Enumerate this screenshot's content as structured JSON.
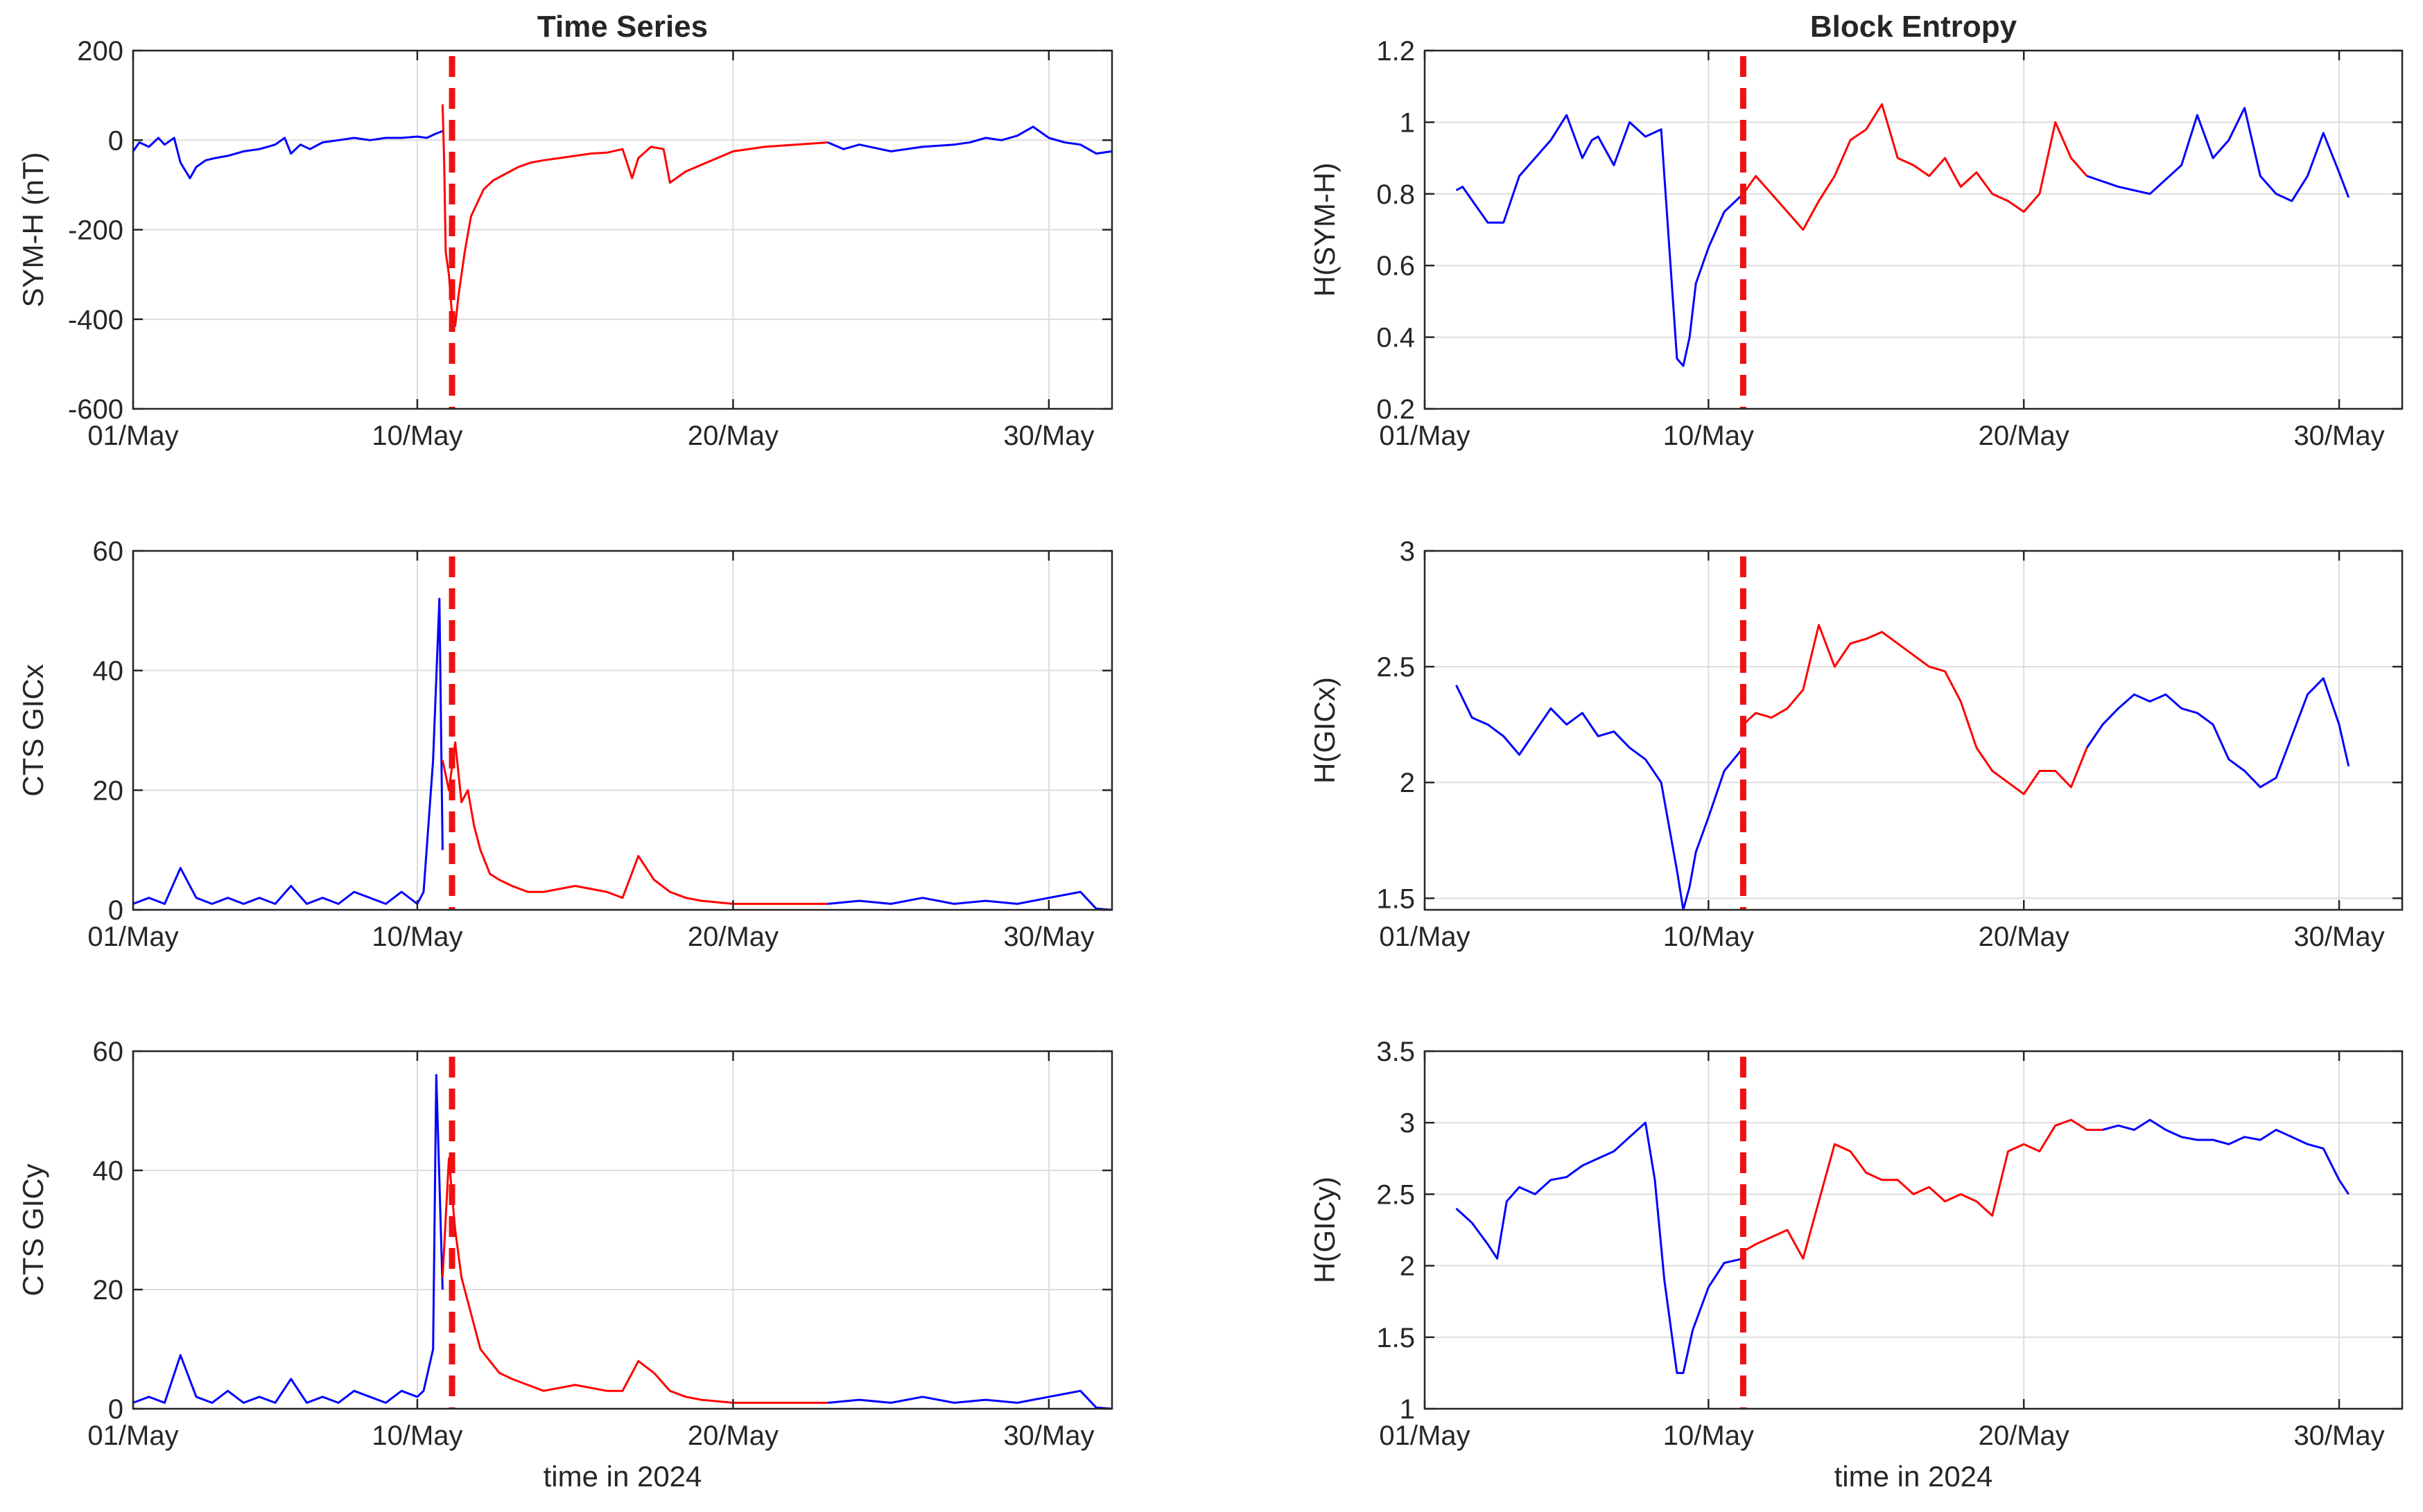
{
  "figure": {
    "colors": {
      "quiet": "#0000ff",
      "storm": "#ff0000",
      "marker": "#ee1111",
      "grid": "#dddddd",
      "axis": "#262626"
    },
    "x_axis": {
      "ticks": [
        "01/May",
        "10/May",
        "20/May",
        "30/May"
      ],
      "xlabel": "time in 2024"
    }
  },
  "chart_data": [
    {
      "id": "a1",
      "type": "line",
      "title": "Time Series",
      "ylabel": "SYM-H (nT)",
      "xlabel": "",
      "xlim": [
        1,
        32
      ],
      "ylim": [
        -600,
        200
      ],
      "yticks": [
        "200",
        "0",
        "-200",
        "-400",
        "-600"
      ],
      "event_marker_day": 11.1,
      "series": [
        {
          "color": "quiet",
          "x": [
            1,
            1.2,
            1.5,
            1.8,
            2,
            2.3,
            2.5,
            2.8,
            3,
            3.3,
            3.6,
            4,
            4.5,
            5,
            5.5,
            5.8,
            6,
            6.3,
            6.6,
            7,
            7.5,
            8,
            8.5,
            9,
            9.5,
            10,
            10.3,
            10.6,
            10.8
          ],
          "y": [
            -25,
            -5,
            -15,
            5,
            -10,
            5,
            -50,
            -85,
            -60,
            -45,
            -40,
            -35,
            -25,
            -20,
            -10,
            5,
            -30,
            -10,
            -20,
            -5,
            0,
            5,
            0,
            5,
            5,
            8,
            5,
            15,
            20
          ]
        },
        {
          "color": "storm",
          "x": [
            10.8,
            10.85,
            10.9,
            11,
            11.1,
            11.2,
            11.3,
            11.4,
            11.5,
            11.7,
            11.9,
            12.1,
            12.4,
            12.8,
            13.2,
            13.6,
            14,
            14.5,
            15,
            15.5,
            16,
            16.5,
            16.8,
            17,
            17.4,
            17.8,
            18,
            18.5,
            19,
            19.5,
            20,
            21,
            22,
            23
          ],
          "y": [
            80,
            -50,
            -250,
            -300,
            -390,
            -415,
            -350,
            -300,
            -250,
            -170,
            -140,
            -110,
            -90,
            -75,
            -60,
            -50,
            -45,
            -40,
            -35,
            -30,
            -28,
            -20,
            -85,
            -40,
            -15,
            -20,
            -95,
            -70,
            -55,
            -40,
            -25,
            -15,
            -10,
            -5
          ]
        },
        {
          "color": "quiet",
          "x": [
            23,
            23.5,
            24,
            25,
            26,
            27,
            27.5,
            28,
            28.5,
            29,
            29.5,
            30,
            30.5,
            31,
            31.5,
            32
          ],
          "y": [
            -5,
            -20,
            -10,
            -25,
            -15,
            -10,
            -5,
            5,
            0,
            10,
            30,
            5,
            -5,
            -10,
            -30,
            -25
          ]
        }
      ]
    },
    {
      "id": "a2",
      "type": "line",
      "title": "",
      "ylabel": "CTS GICx",
      "xlabel": "",
      "xlim": [
        1,
        32
      ],
      "ylim": [
        0,
        60
      ],
      "yticks": [
        "60",
        "40",
        "20",
        "0"
      ],
      "event_marker_day": 11.1,
      "series": [
        {
          "color": "quiet",
          "x": [
            1,
            1.5,
            2,
            2.5,
            3,
            3.5,
            4,
            4.5,
            5,
            5.5,
            6,
            6.5,
            7,
            7.5,
            8,
            8.5,
            9,
            9.5,
            10,
            10.2,
            10.5,
            10.7,
            10.8
          ],
          "y": [
            1,
            2,
            1,
            7,
            2,
            1,
            2,
            1,
            2,
            1,
            4,
            1,
            2,
            1,
            3,
            2,
            1,
            3,
            1,
            3,
            25,
            52,
            10
          ]
        },
        {
          "color": "storm",
          "x": [
            10.8,
            11,
            11.2,
            11.4,
            11.6,
            11.8,
            12,
            12.3,
            12.6,
            13,
            13.5,
            14,
            15,
            16,
            16.5,
            17,
            17.5,
            18,
            18.5,
            19,
            20,
            21,
            22,
            23
          ],
          "y": [
            25,
            20,
            28,
            18,
            20,
            14,
            10,
            6,
            5,
            4,
            3,
            3,
            4,
            3,
            2,
            9,
            5,
            3,
            2,
            1.5,
            1,
            1,
            1,
            1
          ]
        },
        {
          "color": "quiet",
          "x": [
            23,
            24,
            25,
            26,
            27,
            28,
            29,
            30,
            31,
            31.5,
            32
          ],
          "y": [
            1,
            1.5,
            1,
            2,
            1,
            1.5,
            1,
            2,
            3,
            0.2,
            0
          ]
        }
      ]
    },
    {
      "id": "a3",
      "type": "line",
      "title": "",
      "ylabel": "CTS GICy",
      "xlabel": "time in 2024",
      "xlim": [
        1,
        32
      ],
      "ylim": [
        0,
        60
      ],
      "yticks": [
        "60",
        "40",
        "20",
        "0"
      ],
      "event_marker_day": 11.1,
      "series": [
        {
          "color": "quiet",
          "x": [
            1,
            1.5,
            2,
            2.5,
            3,
            3.5,
            4,
            4.5,
            5,
            5.5,
            6,
            6.5,
            7,
            7.5,
            8,
            8.5,
            9,
            9.5,
            10,
            10.2,
            10.5,
            10.6,
            10.8
          ],
          "y": [
            1,
            2,
            1,
            9,
            2,
            1,
            3,
            1,
            2,
            1,
            5,
            1,
            2,
            1,
            3,
            2,
            1,
            3,
            2,
            3,
            10,
            56,
            20
          ]
        },
        {
          "color": "storm",
          "x": [
            10.8,
            11,
            11.2,
            11.4,
            11.6,
            11.8,
            12,
            12.3,
            12.6,
            13,
            13.5,
            14,
            15,
            16,
            16.5,
            17,
            17.5,
            18,
            18.5,
            19,
            20,
            21,
            22,
            23
          ],
          "y": [
            22,
            42,
            30,
            22,
            18,
            14,
            10,
            8,
            6,
            5,
            4,
            3,
            4,
            3,
            3,
            8,
            6,
            3,
            2,
            1.5,
            1,
            1,
            1,
            1
          ]
        },
        {
          "color": "quiet",
          "x": [
            23,
            24,
            25,
            26,
            27,
            28,
            29,
            30,
            31,
            31.5,
            32
          ],
          "y": [
            1,
            1.5,
            1,
            2,
            1,
            1.5,
            1,
            2,
            3,
            0.2,
            0
          ]
        }
      ]
    },
    {
      "id": "b1",
      "type": "line",
      "title": "Block Entropy",
      "ylabel": "H(SYM-H)",
      "xlabel": "",
      "xlim": [
        1,
        32
      ],
      "ylim": [
        0.2,
        1.2
      ],
      "yticks": [
        "1.2",
        "1",
        "0.8",
        "0.6",
        "0.4",
        "0.2"
      ],
      "event_marker_day": 11.1,
      "series": [
        {
          "color": "quiet",
          "x": [
            2,
            2.2,
            3,
            3.5,
            4,
            4.5,
            5,
            5.5,
            6,
            6.3,
            6.5,
            7,
            7.5,
            8,
            8.5,
            9,
            9.2,
            9.4,
            9.6,
            10,
            10.5,
            11.1
          ],
          "y": [
            0.81,
            0.82,
            0.72,
            0.72,
            0.85,
            0.9,
            0.95,
            1.02,
            0.9,
            0.95,
            0.96,
            0.88,
            1.0,
            0.96,
            0.98,
            0.34,
            0.32,
            0.4,
            0.55,
            0.65,
            0.75,
            0.8
          ]
        },
        {
          "color": "storm",
          "x": [
            11.1,
            11.5,
            12,
            12.5,
            13,
            13.5,
            14,
            14.5,
            15,
            15.5,
            16,
            16.5,
            17,
            17.5,
            18,
            18.5,
            19,
            19.5,
            20,
            20.5,
            21,
            21.5,
            22
          ],
          "y": [
            0.8,
            0.85,
            0.8,
            0.75,
            0.7,
            0.78,
            0.85,
            0.95,
            0.98,
            1.05,
            0.9,
            0.88,
            0.85,
            0.9,
            0.82,
            0.86,
            0.8,
            0.78,
            0.75,
            0.8,
            1.0,
            0.9,
            0.85
          ]
        },
        {
          "color": "quiet",
          "x": [
            22,
            23,
            24,
            25,
            25.5,
            26,
            26.5,
            27,
            27.5,
            28,
            28.5,
            29,
            29.5,
            30,
            30.3
          ],
          "y": [
            0.85,
            0.82,
            0.8,
            0.88,
            1.02,
            0.9,
            0.95,
            1.04,
            0.85,
            0.8,
            0.78,
            0.85,
            0.97,
            0.86,
            0.79
          ]
        }
      ]
    },
    {
      "id": "b2",
      "type": "line",
      "title": "",
      "ylabel": "H(GICx)",
      "xlabel": "",
      "xlim": [
        1,
        32
      ],
      "ylim": [
        1.45,
        3
      ],
      "yticks": [
        "3",
        "2.5",
        "2",
        "1.5"
      ],
      "event_marker_day": 11.1,
      "series": [
        {
          "color": "quiet",
          "x": [
            2,
            2.5,
            3,
            3.5,
            4,
            4.5,
            5,
            5.5,
            6,
            6.5,
            7,
            7.5,
            8,
            8.5,
            9,
            9.2,
            9.4,
            9.6,
            10,
            10.5,
            11.1
          ],
          "y": [
            2.42,
            2.28,
            2.25,
            2.2,
            2.12,
            2.22,
            2.32,
            2.25,
            2.3,
            2.2,
            2.22,
            2.15,
            2.1,
            2.0,
            1.62,
            1.45,
            1.55,
            1.7,
            1.85,
            2.05,
            2.15
          ]
        },
        {
          "color": "storm",
          "x": [
            11.1,
            11.5,
            12,
            12.5,
            13,
            13.5,
            14,
            14.5,
            15,
            15.5,
            16,
            16.5,
            17,
            17.5,
            18,
            18.5,
            19,
            19.5,
            20,
            20.5,
            21,
            21.5,
            22
          ],
          "y": [
            2.25,
            2.3,
            2.28,
            2.32,
            2.4,
            2.68,
            2.5,
            2.6,
            2.62,
            2.65,
            2.6,
            2.55,
            2.5,
            2.48,
            2.35,
            2.15,
            2.05,
            2.0,
            1.95,
            2.05,
            2.05,
            1.98,
            2.15
          ]
        },
        {
          "color": "quiet",
          "x": [
            22,
            22.5,
            23,
            23.5,
            24,
            24.5,
            25,
            25.5,
            26,
            26.5,
            27,
            27.5,
            28,
            28.5,
            29,
            29.5,
            30,
            30.3
          ],
          "y": [
            2.15,
            2.25,
            2.32,
            2.38,
            2.35,
            2.38,
            2.32,
            2.3,
            2.25,
            2.1,
            2.05,
            1.98,
            2.02,
            2.2,
            2.38,
            2.45,
            2.25,
            2.07
          ]
        }
      ]
    },
    {
      "id": "b3",
      "type": "line",
      "title": "",
      "ylabel": "H(GICy)",
      "xlabel": "time in 2024",
      "xlim": [
        1,
        32
      ],
      "ylim": [
        1,
        3.5
      ],
      "yticks": [
        "3.5",
        "3",
        "2.5",
        "2",
        "1.5",
        "1"
      ],
      "event_marker_day": 11.1,
      "series": [
        {
          "color": "quiet",
          "x": [
            2,
            2.5,
            3,
            3.3,
            3.6,
            4,
            4.5,
            5,
            5.5,
            6,
            6.5,
            7,
            7.5,
            8,
            8.3,
            8.6,
            9,
            9.2,
            9.5,
            10,
            10.5,
            11.1
          ],
          "y": [
            2.4,
            2.3,
            2.15,
            2.05,
            2.45,
            2.55,
            2.5,
            2.6,
            2.62,
            2.7,
            2.75,
            2.8,
            2.9,
            3.0,
            2.6,
            1.9,
            1.25,
            1.25,
            1.55,
            1.85,
            2.02,
            2.05
          ]
        },
        {
          "color": "storm",
          "x": [
            11.1,
            11.5,
            12,
            12.5,
            13,
            13.5,
            14,
            14.5,
            15,
            15.5,
            16,
            16.5,
            17,
            17.5,
            18,
            18.5,
            19,
            19.5,
            20,
            20.5,
            21,
            21.5,
            22,
            22.5
          ],
          "y": [
            2.1,
            2.15,
            2.2,
            2.25,
            2.05,
            2.45,
            2.85,
            2.8,
            2.65,
            2.6,
            2.6,
            2.5,
            2.55,
            2.45,
            2.5,
            2.45,
            2.35,
            2.8,
            2.85,
            2.8,
            2.98,
            3.02,
            2.95,
            2.95
          ]
        },
        {
          "color": "quiet",
          "x": [
            22.5,
            23,
            23.5,
            24,
            24.5,
            25,
            25.5,
            26,
            26.5,
            27,
            27.5,
            28,
            28.5,
            29,
            29.5,
            30,
            30.3
          ],
          "y": [
            2.95,
            2.98,
            2.95,
            3.02,
            2.95,
            2.9,
            2.88,
            2.88,
            2.85,
            2.9,
            2.88,
            2.95,
            2.9,
            2.85,
            2.82,
            2.6,
            2.5
          ]
        }
      ]
    }
  ]
}
